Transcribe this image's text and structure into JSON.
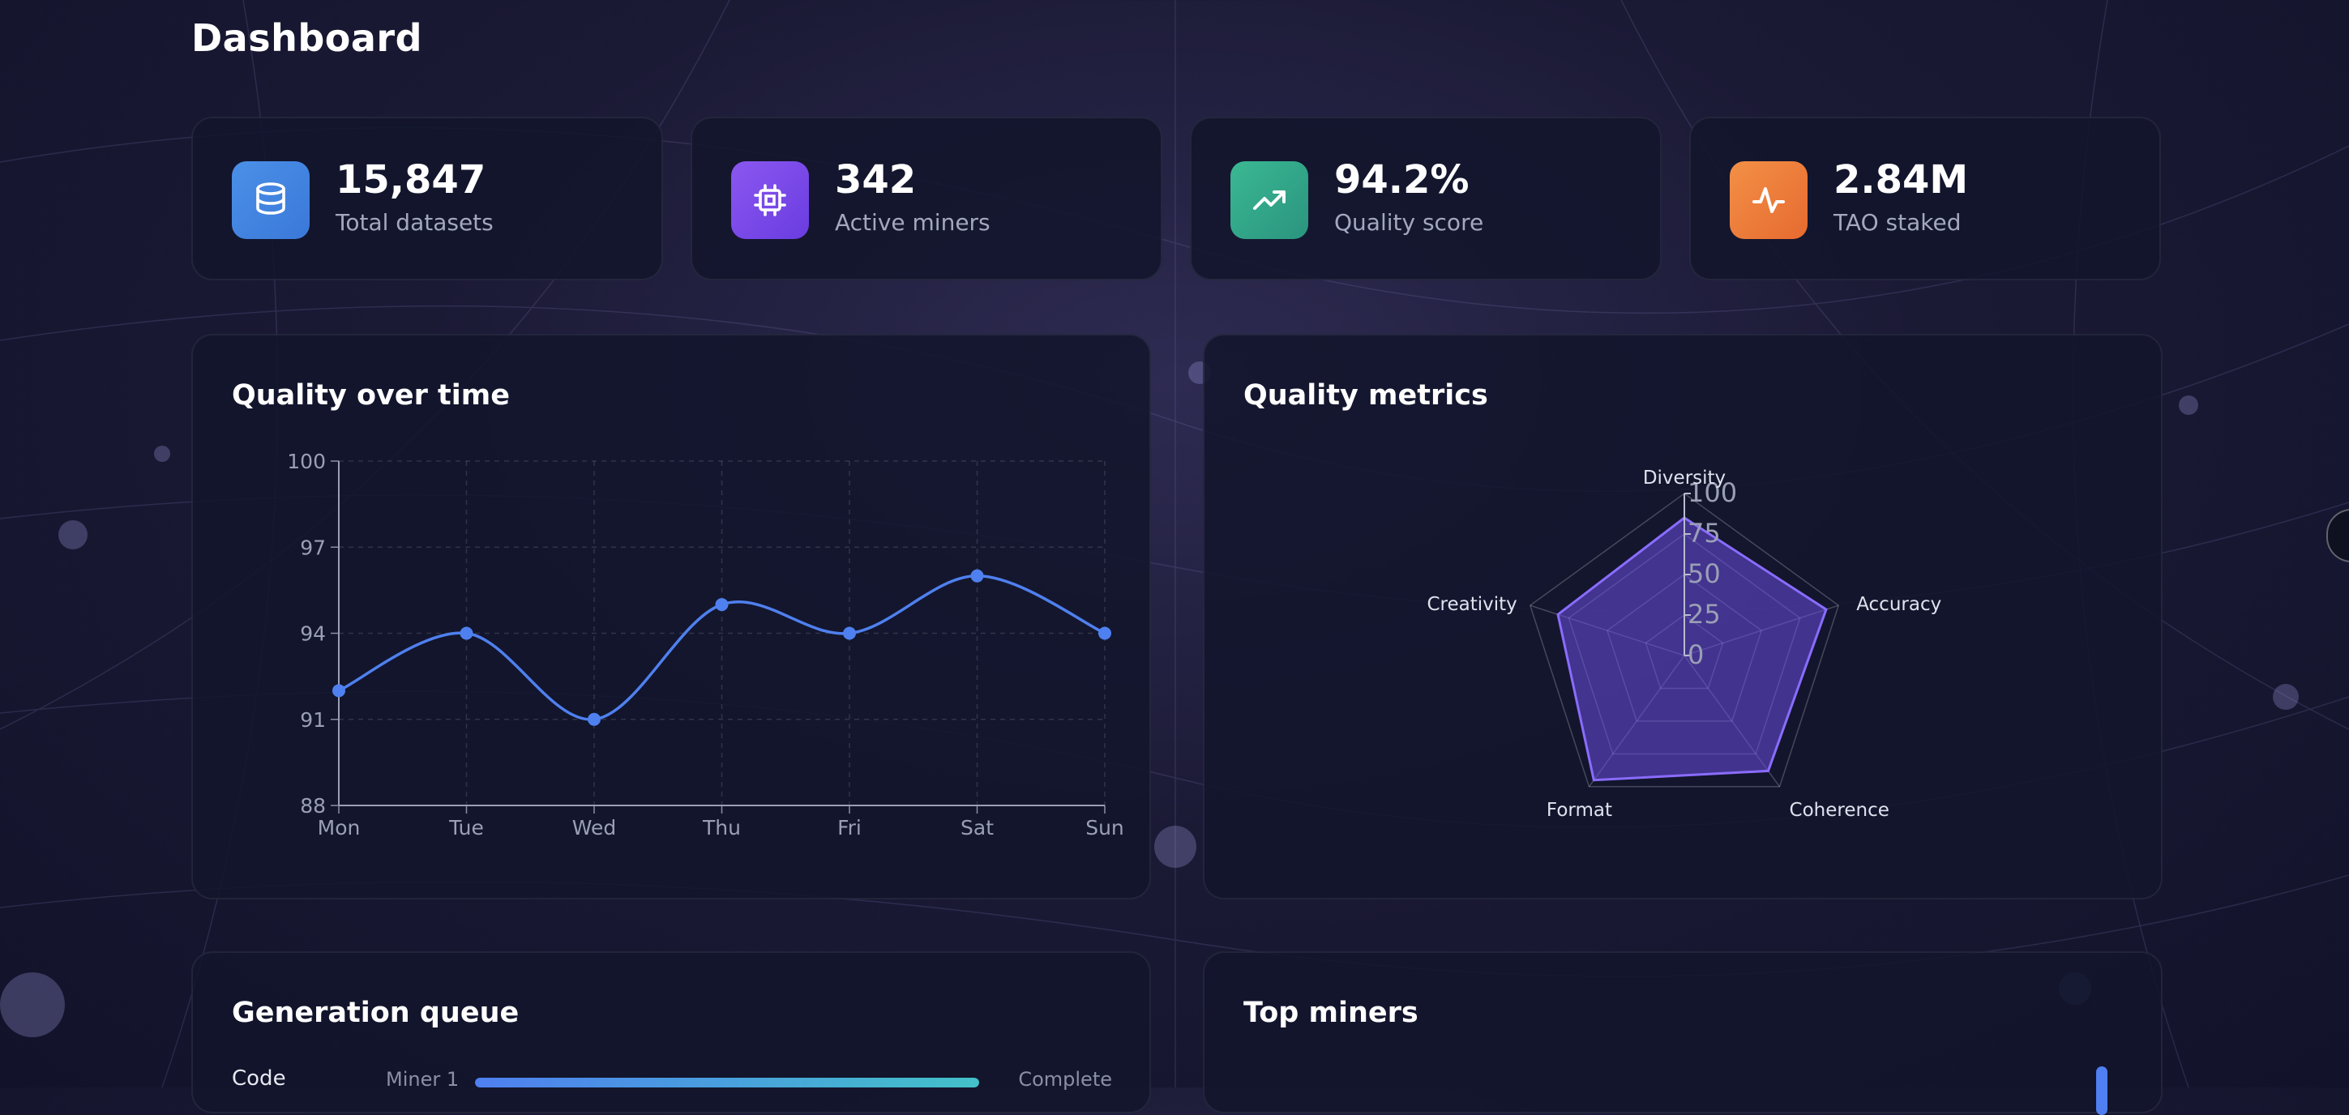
{
  "page": {
    "title": "Dashboard"
  },
  "stats": [
    {
      "value": "15,847",
      "label": "Total datasets",
      "icon": "database-icon",
      "color": "#3f86e0"
    },
    {
      "value": "342",
      "label": "Active miners",
      "icon": "cpu-icon",
      "color": "#7a48e6"
    },
    {
      "value": "94.2%",
      "label": "Quality score",
      "icon": "trending-up-icon",
      "color": "#30a58a"
    },
    {
      "value": "2.84M",
      "label": "TAO staked",
      "icon": "activity-icon",
      "color": "#ee7a38"
    }
  ],
  "panels": {
    "quality_over_time": "Quality over time",
    "quality_metrics": "Quality metrics",
    "generation_queue": "Generation queue",
    "top_miners": "Top miners"
  },
  "queue": [
    {
      "category": "Code",
      "miner": "Miner 1",
      "progress": 1.0,
      "status": "Complete"
    }
  ],
  "colors": {
    "line": "#4f80ef",
    "radar_fill": "#6a4fe0",
    "radar_stroke": "#8a6cff",
    "progress_start": "#4f7ff0",
    "progress_end": "#43c1c9"
  },
  "chart_data": [
    {
      "type": "line",
      "title": "Quality over time",
      "x": [
        "Mon",
        "Tue",
        "Wed",
        "Thu",
        "Fri",
        "Sat",
        "Sun"
      ],
      "series": [
        {
          "values": [
            92,
            94,
            91,
            95,
            94,
            96,
            94
          ]
        }
      ],
      "ylim": [
        88,
        100
      ],
      "yticks": [
        "100",
        "97",
        "94",
        "91",
        "88"
      ],
      "grid": true,
      "curve": "smooth"
    },
    {
      "type": "radar",
      "title": "Quality metrics",
      "axes": [
        "Diversity",
        "Accuracy",
        "Coherence",
        "Format",
        "Creativity"
      ],
      "series": [
        {
          "values": [
            85,
            92,
            88,
            95,
            82
          ]
        }
      ],
      "rlim": [
        0,
        100
      ],
      "rticks": [
        "100",
        "75",
        "50",
        "25",
        "0"
      ]
    }
  ]
}
